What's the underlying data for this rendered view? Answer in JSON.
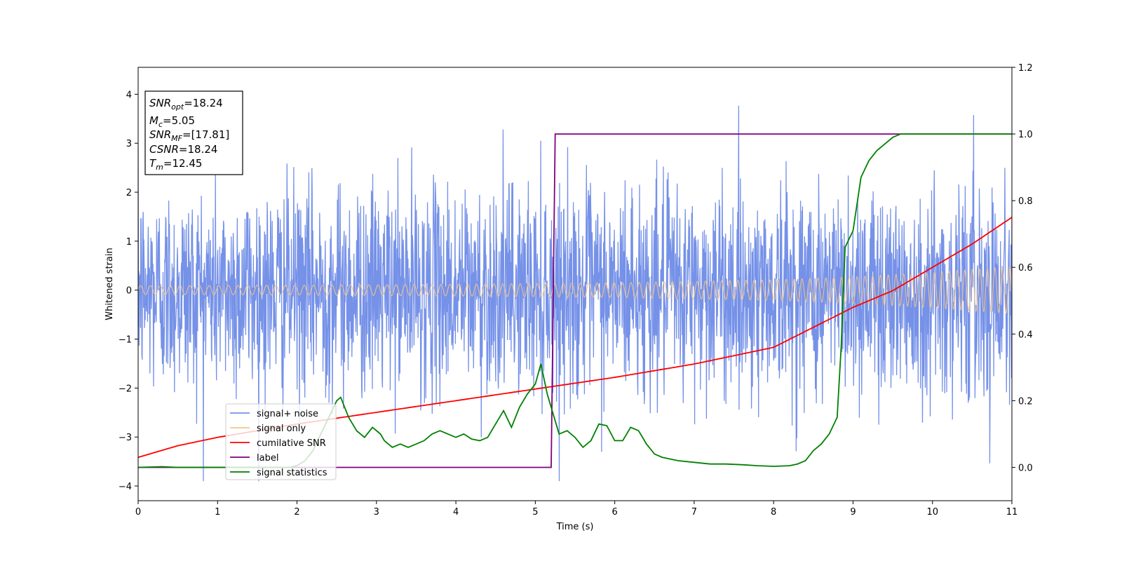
{
  "chart_data": {
    "type": "line",
    "title": "",
    "xlabel": "Time (s)",
    "ylabel": "Whitened strain",
    "xlim": [
      0,
      11
    ],
    "ylim": [
      -4.3,
      4.55
    ],
    "y2lim": [
      -0.1,
      1.2
    ],
    "x_ticks": [
      0,
      1,
      2,
      3,
      4,
      5,
      6,
      7,
      8,
      9,
      10,
      11
    ],
    "y_ticks": [
      -4,
      -3,
      -2,
      -1,
      0,
      1,
      2,
      3,
      4
    ],
    "y2_ticks": [
      0.0,
      0.2,
      0.4,
      0.6,
      0.8,
      1.0,
      1.2
    ],
    "grid": false,
    "legend_position": "lower-left",
    "series": [
      {
        "name": "signal+ noise",
        "axis": "left",
        "color": "#7591e8",
        "description": "white noise plus chirp, envelope approx 0 ± 2.5",
        "noise_sigma": 1.0,
        "y_max": 4.15,
        "y_min": -3.9
      },
      {
        "name": "signal only",
        "axis": "left",
        "color": "#f5c48a",
        "description": "chirp oscillation",
        "amplitude_x": [
          0,
          2,
          4,
          6,
          8,
          9,
          10,
          11
        ],
        "amplitude_y": [
          0.09,
          0.1,
          0.12,
          0.15,
          0.21,
          0.27,
          0.36,
          0.48
        ]
      },
      {
        "name": "cumilative SNR",
        "axis": "right",
        "color": "#ff0000",
        "x": [
          0,
          0.5,
          1,
          2,
          3,
          4,
          5,
          6,
          7,
          8,
          9,
          9.5,
          10,
          10.5,
          11
        ],
        "y": [
          0.03,
          0.065,
          0.09,
          0.13,
          0.165,
          0.2,
          0.235,
          0.27,
          0.31,
          0.36,
          0.48,
          0.53,
          0.6,
          0.67,
          0.75
        ]
      },
      {
        "name": "label",
        "axis": "right",
        "color": "#800080",
        "x": [
          0,
          5.2,
          5.25,
          11
        ],
        "y": [
          0,
          0,
          1,
          1
        ]
      },
      {
        "name": "signal statistics",
        "axis": "right",
        "color": "#008000",
        "x": [
          0,
          0.3,
          0.5,
          1,
          1.5,
          1.9,
          2.0,
          2.1,
          2.2,
          2.3,
          2.4,
          2.5,
          2.55,
          2.6,
          2.65,
          2.75,
          2.85,
          2.95,
          3.05,
          3.1,
          3.2,
          3.3,
          3.4,
          3.5,
          3.6,
          3.7,
          3.8,
          3.9,
          4.0,
          4.1,
          4.2,
          4.3,
          4.4,
          4.5,
          4.6,
          4.7,
          4.8,
          4.9,
          5.0,
          5.07,
          5.15,
          5.2,
          5.3,
          5.4,
          5.5,
          5.6,
          5.7,
          5.8,
          5.9,
          6.0,
          6.1,
          6.2,
          6.3,
          6.4,
          6.5,
          6.6,
          6.8,
          7.0,
          7.2,
          7.4,
          7.6,
          7.8,
          8.0,
          8.2,
          8.3,
          8.4,
          8.5,
          8.6,
          8.7,
          8.8,
          8.85,
          8.9,
          9.0,
          9.1,
          9.2,
          9.3,
          9.4,
          9.5,
          9.6,
          9.7,
          9.8,
          10,
          11
        ],
        "y": [
          0.0,
          0.002,
          0.0,
          0.0,
          0.0,
          0.0,
          0.005,
          0.02,
          0.05,
          0.1,
          0.15,
          0.2,
          0.21,
          0.18,
          0.15,
          0.11,
          0.09,
          0.12,
          0.1,
          0.08,
          0.06,
          0.07,
          0.06,
          0.07,
          0.08,
          0.1,
          0.11,
          0.1,
          0.09,
          0.1,
          0.085,
          0.08,
          0.09,
          0.13,
          0.17,
          0.12,
          0.18,
          0.22,
          0.25,
          0.31,
          0.22,
          0.18,
          0.1,
          0.11,
          0.09,
          0.06,
          0.08,
          0.13,
          0.125,
          0.08,
          0.08,
          0.12,
          0.11,
          0.07,
          0.04,
          0.03,
          0.02,
          0.015,
          0.01,
          0.01,
          0.008,
          0.005,
          0.003,
          0.005,
          0.01,
          0.02,
          0.05,
          0.07,
          0.1,
          0.15,
          0.36,
          0.66,
          0.71,
          0.87,
          0.92,
          0.95,
          0.97,
          0.99,
          1.0,
          1.0,
          1.0,
          1.0,
          1.0
        ]
      }
    ],
    "annotation": {
      "lines": [
        {
          "main": "SNR",
          "sub": "opt",
          "rest": "=18.24"
        },
        {
          "main": "M",
          "sub": "c",
          "rest": "=5.05"
        },
        {
          "main": "SNR",
          "sub": "MF",
          "rest": "=[17.81]"
        },
        {
          "main": "CSNR",
          "sub": "",
          "rest": "=18.24"
        },
        {
          "main": "T",
          "sub": "m",
          "rest": "=12.45"
        }
      ]
    }
  }
}
